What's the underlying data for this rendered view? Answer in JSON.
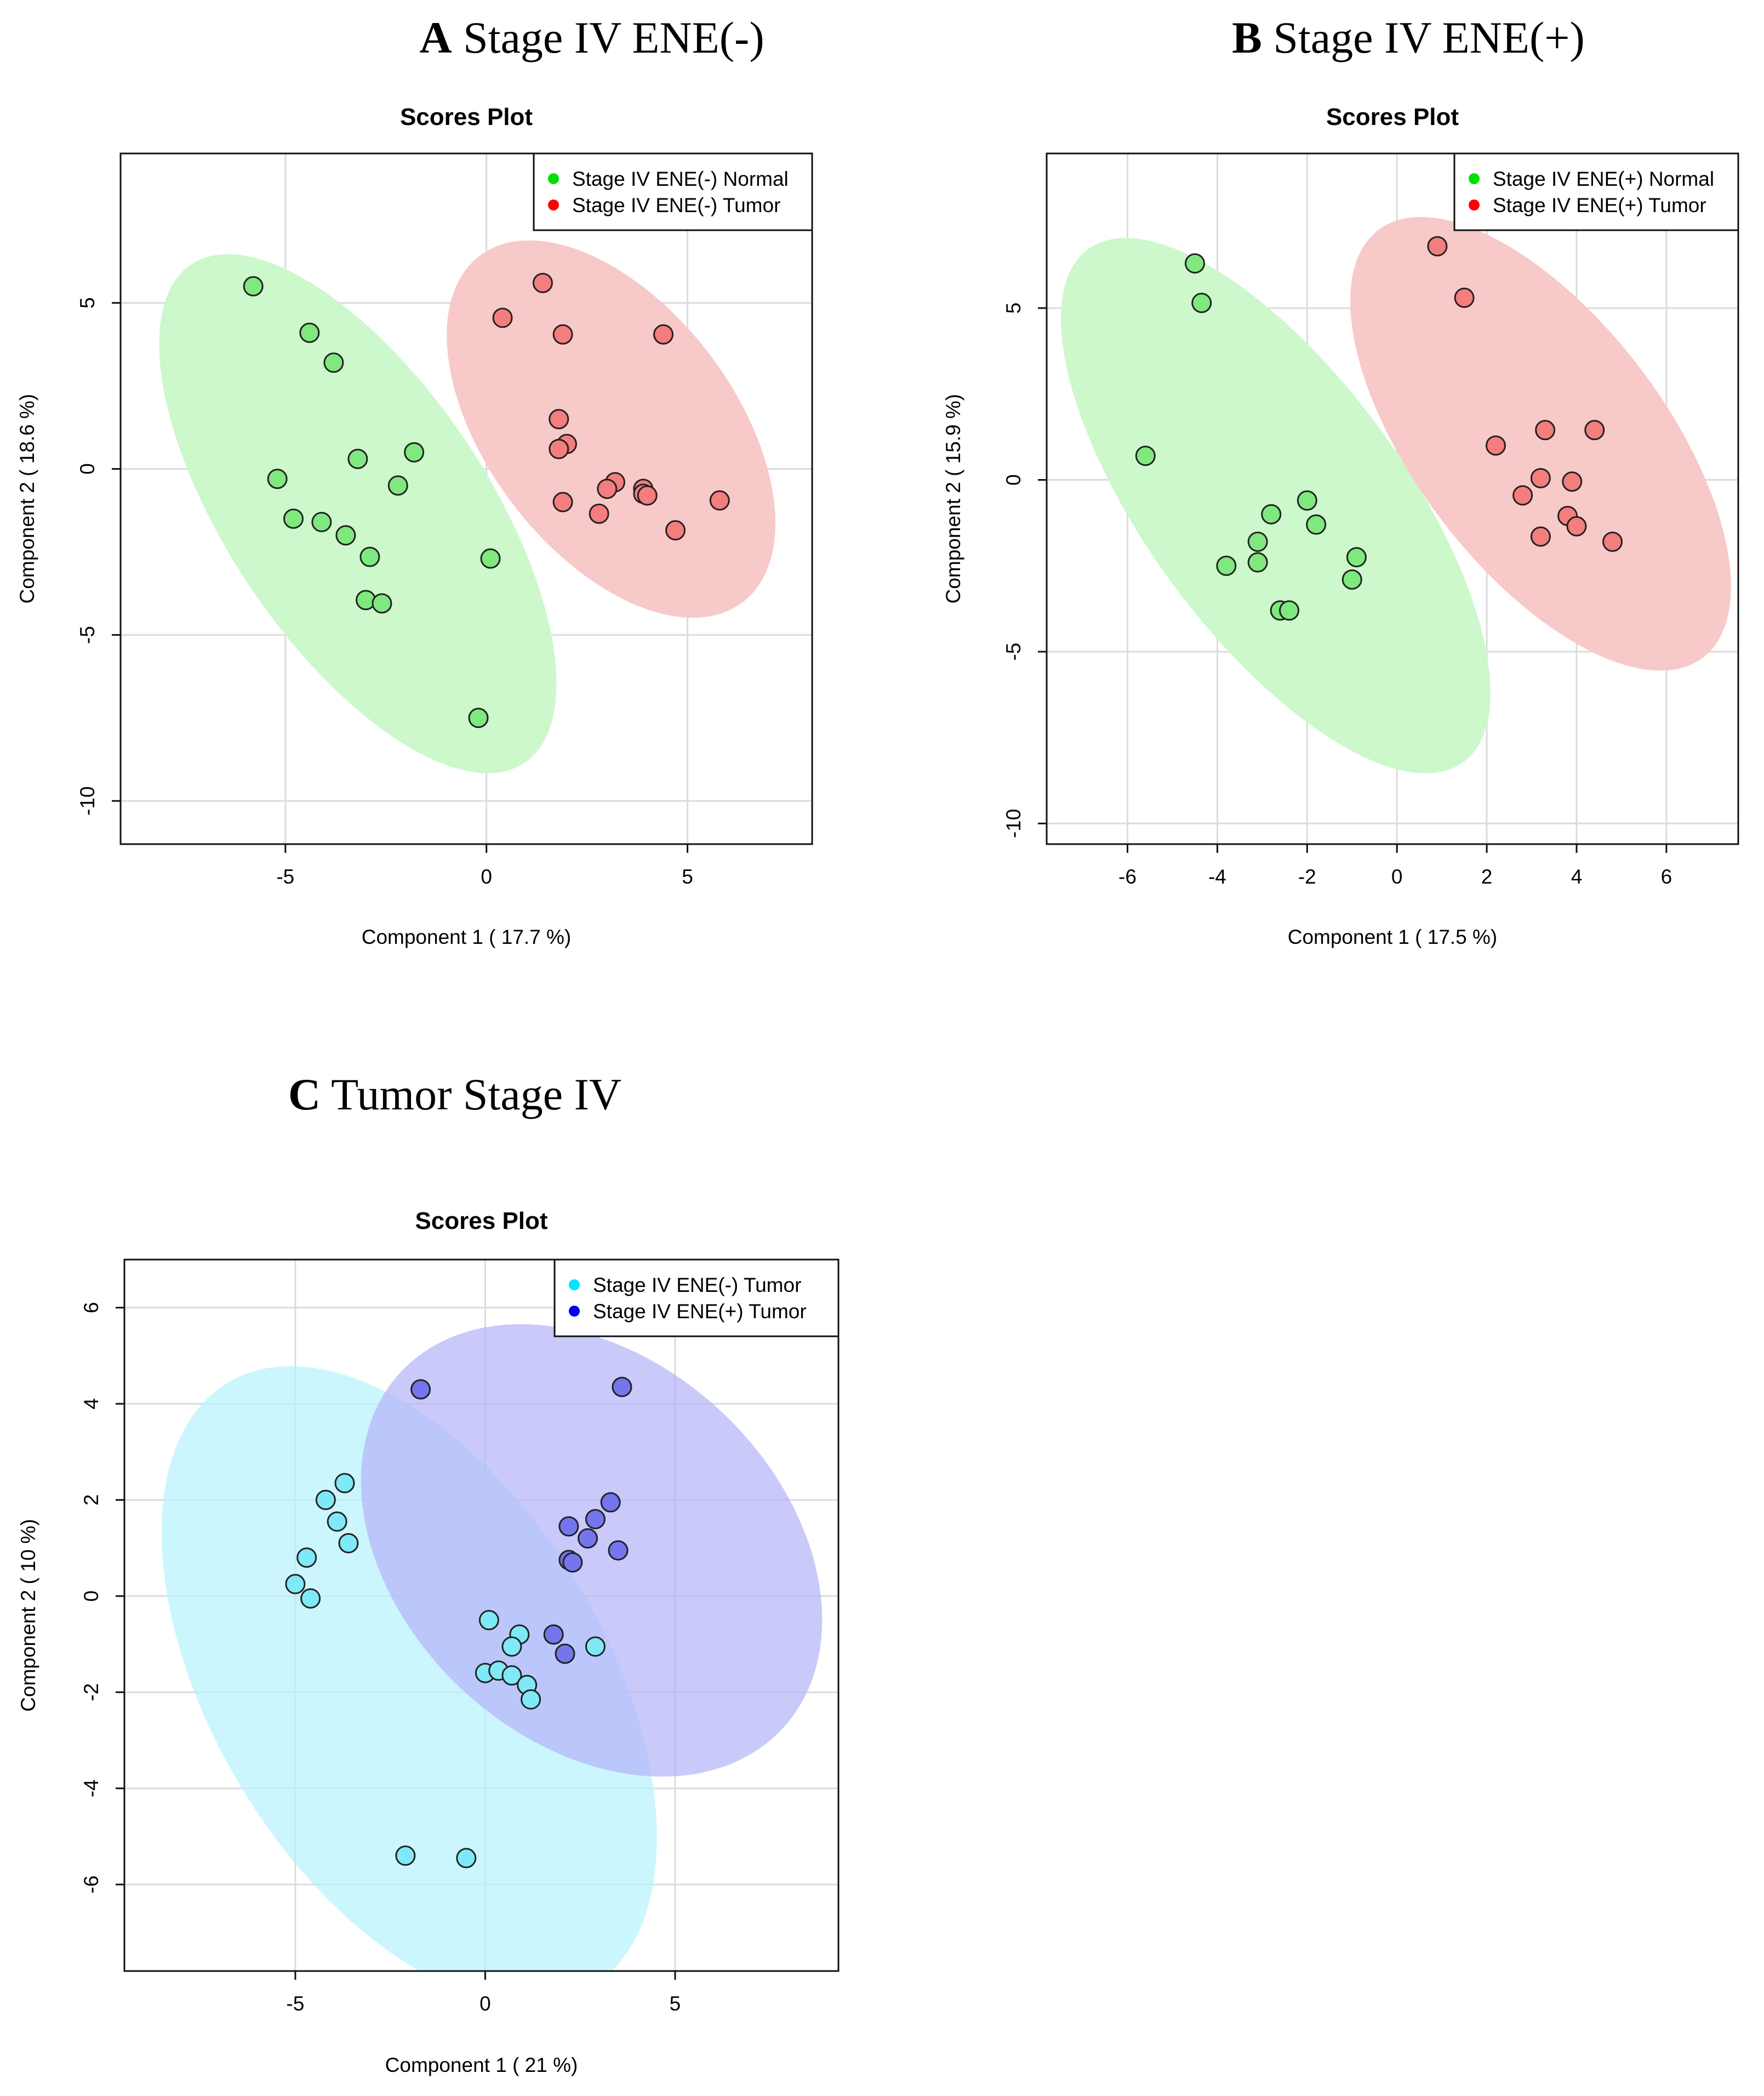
{
  "chart_data": [
    {
      "id": "A",
      "panel_letter": "A",
      "panel_title": "Stage IV ENE(-)",
      "type": "scatter",
      "title": "Scores Plot",
      "xlabel": "Component 1 ( 17.7 %)",
      "ylabel": "Component 2 ( 18.6 %)",
      "xlim": [
        -9.1,
        8.1
      ],
      "ylim": [
        -11.3,
        9.5
      ],
      "xticks": [
        -5,
        0,
        5
      ],
      "xtick_labels": [
        "-5",
        "0",
        "5"
      ],
      "yticks": [
        -10,
        -5,
        0,
        5
      ],
      "ytick_labels": [
        "-10",
        "-5",
        "0",
        "5"
      ],
      "grid": true,
      "legend_position": "top-right",
      "series": [
        {
          "name": "Stage IV ENE(-) Normal",
          "color": "#00e000",
          "point_fill": "#7fe87f",
          "ellipse_fill": "#ccf8cc",
          "ellipse": {
            "cx": -3.2,
            "cy": -1.35,
            "rx": 8.6,
            "ry": 3.4,
            "angle_deg": -63
          },
          "points": [
            [
              -5.8,
              5.5
            ],
            [
              -4.4,
              4.1
            ],
            [
              -3.8,
              3.2
            ],
            [
              -5.2,
              -0.3
            ],
            [
              -3.2,
              0.3
            ],
            [
              -1.8,
              0.5
            ],
            [
              -4.8,
              -1.5
            ],
            [
              -4.1,
              -1.6
            ],
            [
              -3.5,
              -2.0
            ],
            [
              -2.9,
              -2.65
            ],
            [
              -2.2,
              -0.5
            ],
            [
              0.1,
              -2.7
            ],
            [
              -3.0,
              -3.95
            ],
            [
              -2.6,
              -4.05
            ],
            [
              -0.2,
              -7.5
            ]
          ]
        },
        {
          "name": "Stage IV ENE(-) Tumor",
          "color": "#ff0000",
          "point_fill": "#f47d7d",
          "ellipse_fill": "#f8c9c9",
          "ellipse": {
            "cx": 3.1,
            "cy": 1.2,
            "rx": 6.2,
            "ry": 3.25,
            "angle_deg": -62
          },
          "points": [
            [
              1.4,
              5.6
            ],
            [
              0.4,
              4.55
            ],
            [
              1.9,
              4.05
            ],
            [
              4.4,
              4.05
            ],
            [
              1.8,
              1.5
            ],
            [
              2.0,
              0.75
            ],
            [
              1.8,
              0.6
            ],
            [
              3.2,
              -0.4
            ],
            [
              3.0,
              -0.6
            ],
            [
              3.9,
              -0.6
            ],
            [
              3.9,
              -0.75
            ],
            [
              4.0,
              -0.8
            ],
            [
              1.9,
              -1.0
            ],
            [
              2.8,
              -1.35
            ],
            [
              4.7,
              -1.85
            ],
            [
              5.8,
              -0.95
            ]
          ]
        }
      ]
    },
    {
      "id": "B",
      "panel_letter": "B",
      "panel_title": "Stage IV ENE(+)",
      "type": "scatter",
      "title": "Scores Plot",
      "xlabel": "Component 1 ( 17.5 %)",
      "ylabel": "Component 2 ( 15.9 %)",
      "xlim": [
        -7.8,
        7.6
      ],
      "ylim": [
        -10.6,
        9.5
      ],
      "xticks": [
        -6,
        -4,
        -2,
        0,
        2,
        4,
        6
      ],
      "xtick_labels": [
        "-6",
        "-4",
        "-2",
        "0",
        "2",
        "4",
        "6"
      ],
      "yticks": [
        -10,
        -5,
        0,
        5
      ],
      "ytick_labels": [
        "-10",
        "-5",
        "0",
        "5"
      ],
      "grid": true,
      "legend_position": "top-right",
      "series": [
        {
          "name": "Stage IV ENE(+) Normal",
          "color": "#00e000",
          "point_fill": "#7fe87f",
          "ellipse_fill": "#ccf8cc",
          "ellipse": {
            "cx": -2.7,
            "cy": -0.75,
            "rx": 8.6,
            "ry": 3.1,
            "angle_deg": -63
          },
          "points": [
            [
              -4.5,
              6.3
            ],
            [
              -4.35,
              5.15
            ],
            [
              -5.6,
              0.7
            ],
            [
              -2.0,
              -0.6
            ],
            [
              -2.8,
              -1.0
            ],
            [
              -1.8,
              -1.3
            ],
            [
              -3.1,
              -1.8
            ],
            [
              -3.1,
              -2.4
            ],
            [
              -3.8,
              -2.5
            ],
            [
              -0.9,
              -2.25
            ],
            [
              -1.0,
              -2.9
            ],
            [
              -2.6,
              -3.8
            ],
            [
              -2.4,
              -3.8
            ]
          ]
        },
        {
          "name": "Stage IV ENE(+) Tumor",
          "color": "#ff0000",
          "point_fill": "#f47d7d",
          "ellipse_fill": "#f8c9c9",
          "ellipse": {
            "cx": 3.2,
            "cy": 1.05,
            "rx": 7.25,
            "ry": 3.0,
            "angle_deg": -63
          },
          "points": [
            [
              0.9,
              6.8
            ],
            [
              1.5,
              5.3
            ],
            [
              2.2,
              1.0
            ],
            [
              3.3,
              1.45
            ],
            [
              4.4,
              1.45
            ],
            [
              3.2,
              0.05
            ],
            [
              3.9,
              -0.05
            ],
            [
              2.8,
              -0.45
            ],
            [
              3.8,
              -1.05
            ],
            [
              4.0,
              -1.35
            ],
            [
              3.2,
              -1.65
            ],
            [
              4.8,
              -1.8
            ]
          ]
        }
      ]
    },
    {
      "id": "C",
      "panel_letter": "C",
      "panel_title": "Tumor Stage IV",
      "type": "scatter",
      "title": "Scores Plot",
      "xlabel": "Component 1 ( 21 %)",
      "ylabel": "Component 2 ( 10 %)",
      "xlim": [
        -9.5,
        9.3
      ],
      "ylim": [
        -7.8,
        7.0
      ],
      "xticks": [
        -5,
        0,
        5
      ],
      "xtick_labels": [
        "-5",
        "0",
        "5"
      ],
      "yticks": [
        -6,
        -4,
        -2,
        0,
        2,
        4,
        6
      ],
      "ytick_labels": [
        "-6",
        "-4",
        "-2",
        "0",
        "2",
        "4",
        "6"
      ],
      "grid": true,
      "legend_position": "top-right",
      "series": [
        {
          "name": "Stage IV ENE(-) Tumor",
          "color": "#00e5ff",
          "point_fill": "#80e9f7",
          "ellipse_fill": "#b8f2fc",
          "ellipse": {
            "cx": -2.0,
            "cy": -1.85,
            "rx": 8.0,
            "ry": 4.75,
            "angle_deg": -46
          },
          "points": [
            [
              -4.2,
              2.0
            ],
            [
              -3.7,
              2.35
            ],
            [
              -3.9,
              1.55
            ],
            [
              -3.6,
              1.1
            ],
            [
              -4.7,
              0.8
            ],
            [
              -5.0,
              0.25
            ],
            [
              -4.6,
              -0.05
            ],
            [
              0.1,
              -0.5
            ],
            [
              0.9,
              -0.8
            ],
            [
              0.7,
              -1.05
            ],
            [
              2.9,
              -1.05
            ],
            [
              0.0,
              -1.6
            ],
            [
              0.35,
              -1.55
            ],
            [
              0.7,
              -1.65
            ],
            [
              1.1,
              -1.85
            ],
            [
              1.2,
              -2.15
            ],
            [
              -2.1,
              -5.4
            ],
            [
              -0.5,
              -5.45
            ]
          ]
        },
        {
          "name": "Stage IV ENE(+) Tumor",
          "color": "#0000ee",
          "point_fill": "#7575ee",
          "ellipse_fill": "#b4b4f8",
          "ellipse": {
            "cx": 2.8,
            "cy": 0.95,
            "rx": 6.4,
            "ry": 4.25,
            "angle_deg": -25
          },
          "points": [
            [
              -1.7,
              4.3
            ],
            [
              3.6,
              4.35
            ],
            [
              3.3,
              1.95
            ],
            [
              2.9,
              1.6
            ],
            [
              2.2,
              1.45
            ],
            [
              2.7,
              1.2
            ],
            [
              3.5,
              0.95
            ],
            [
              2.2,
              0.75
            ],
            [
              2.3,
              0.7
            ],
            [
              1.8,
              -0.8
            ],
            [
              2.1,
              -1.2
            ]
          ]
        }
      ]
    }
  ]
}
